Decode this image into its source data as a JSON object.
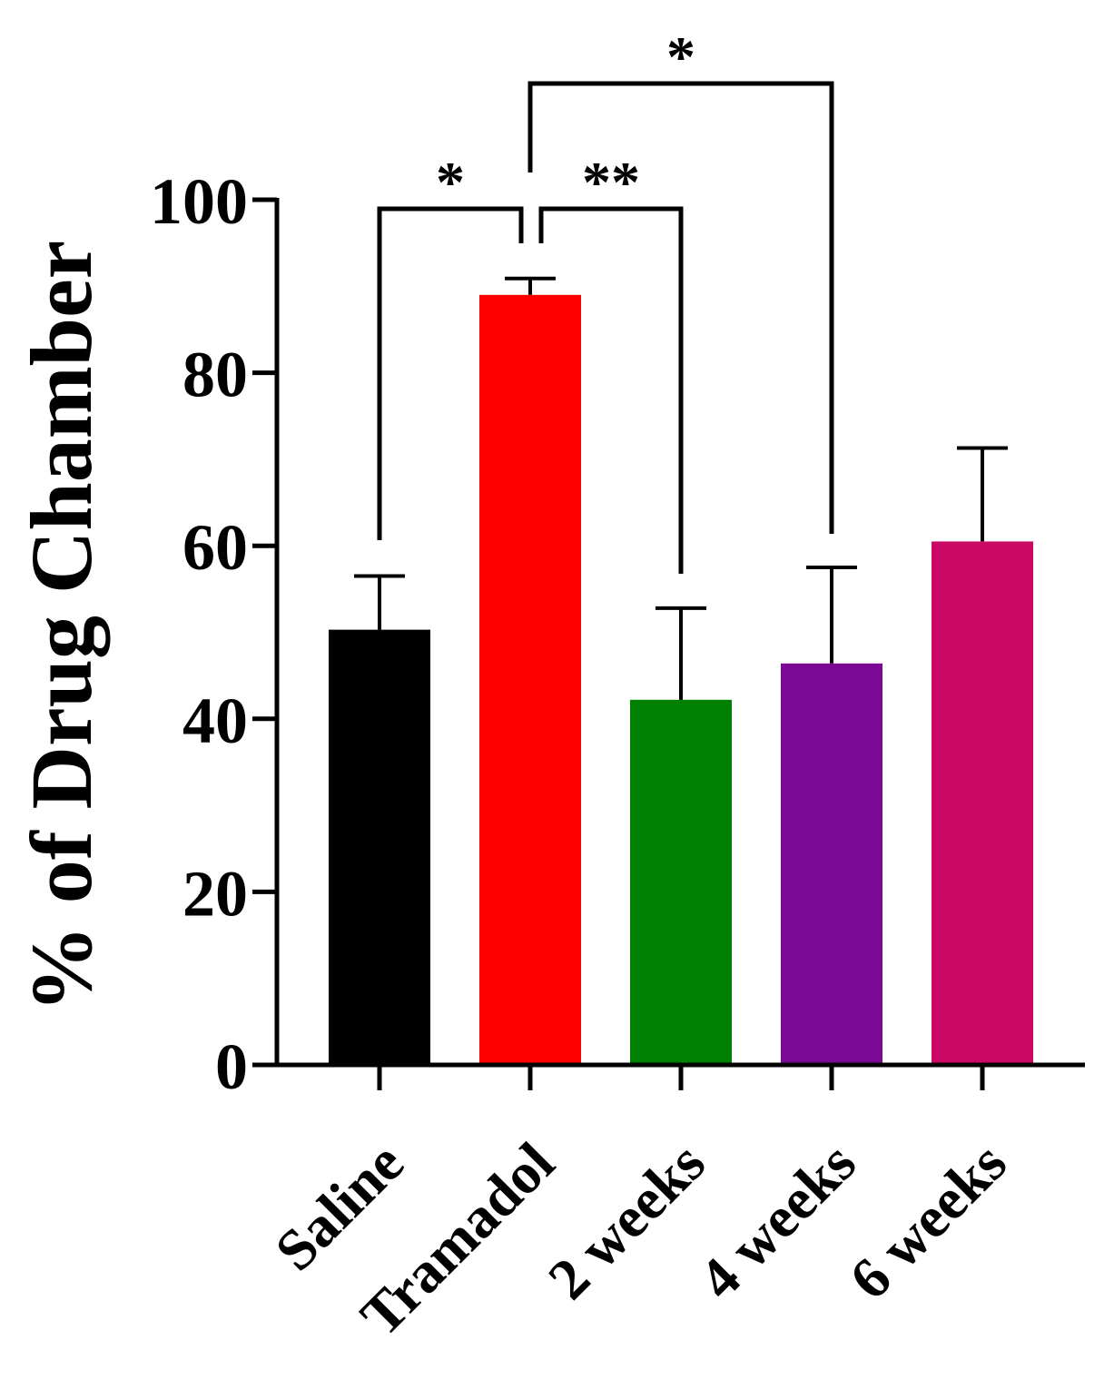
{
  "chart_data": {
    "type": "bar",
    "title": "",
    "xlabel": "",
    "ylabel": "% of Drug Chamber",
    "ylim": [
      0,
      100
    ],
    "yticks": [
      0,
      20,
      40,
      60,
      80,
      100
    ],
    "grid": false,
    "legend": "none",
    "categories": [
      "Saline",
      "Tramadol",
      "2 weeks",
      "4 weeks",
      "6 weeks"
    ],
    "values": [
      50.3,
      89,
      42.2,
      46.4,
      60.5
    ],
    "errors": [
      6.2,
      1.9,
      10.6,
      11.1,
      10.8
    ],
    "colors": [
      "#000000",
      "#ff0000",
      "#008000",
      "#7a0a94",
      "#cc0866"
    ],
    "significance": [
      {
        "from": "Saline",
        "to": "Tramadol",
        "label": "*"
      },
      {
        "from": "Tramadol",
        "to": "2 weeks",
        "label": "**"
      },
      {
        "from": "Tramadol",
        "to": "4 weeks",
        "label": "*"
      }
    ]
  }
}
